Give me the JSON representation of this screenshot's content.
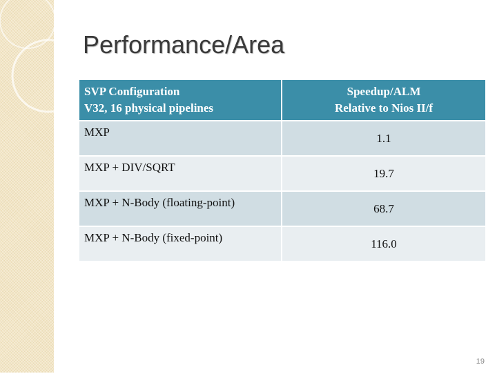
{
  "slide": {
    "title": "Performance/Area",
    "table": {
      "header": [
        [
          "SVP Configuration",
          "V32, 16 physical pipelines"
        ],
        [
          "Speedup/ALM",
          "Relative to Nios II/f"
        ]
      ],
      "rows": [
        [
          "MXP",
          "1.1"
        ],
        [
          "MXP + DIV/SQRT",
          "19.7"
        ],
        [
          "MXP + N-Body (floating-point)",
          "68.7"
        ],
        [
          "MXP + N-Body (fixed-point)",
          "116.0"
        ]
      ]
    },
    "page_number": "19"
  }
}
